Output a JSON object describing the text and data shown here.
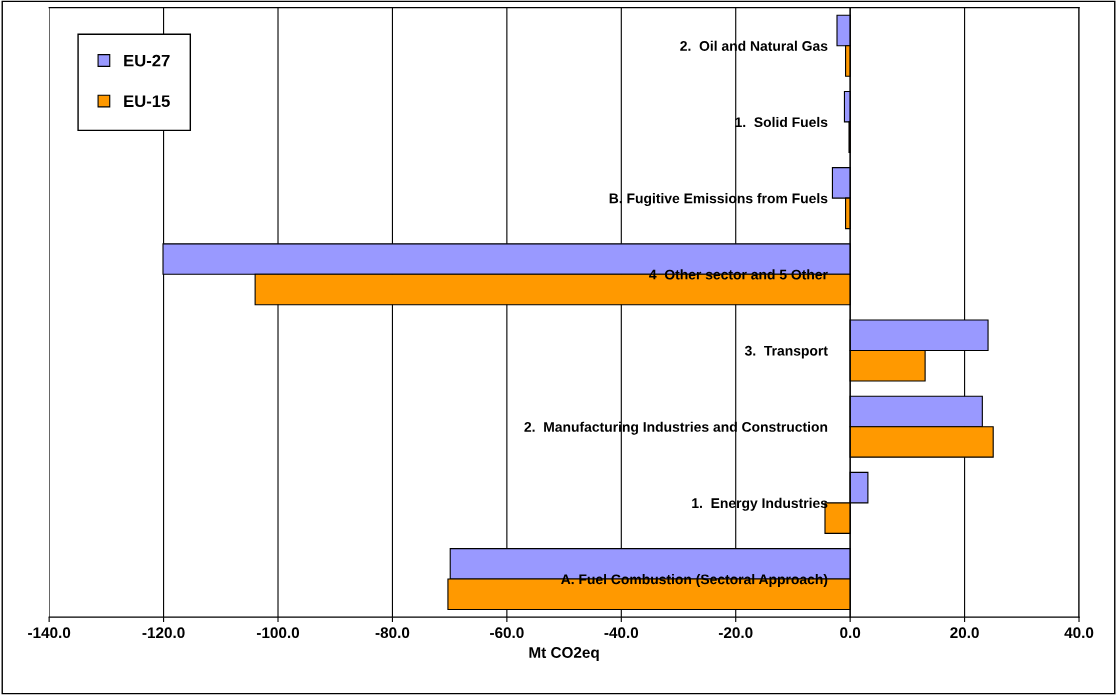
{
  "chart_data": {
    "type": "bar",
    "orientation": "horizontal",
    "xlabel": "Mt CO2eq",
    "categories": [
      "2.  Oil and Natural Gas",
      "1.  Solid Fuels",
      "B. Fugitive Emissions from Fuels",
      "4  Other sector and 5 Other",
      "3.  Transport",
      "2.  Manufacturing Industries and Construction",
      "1.  Energy Industries",
      "A. Fuel Combustion (Sectoral Approach)"
    ],
    "series": [
      {
        "name": "EU-27",
        "color": "#9999ff",
        "values": [
          -2.3,
          -1.0,
          -3.1,
          -120.1,
          24.1,
          23.1,
          3.1,
          -69.9
        ]
      },
      {
        "name": "EU-15",
        "color": "#ff9900",
        "values": [
          -0.8,
          -0.2,
          -0.8,
          -104.0,
          13.1,
          25.0,
          -4.4,
          -70.3
        ]
      }
    ],
    "xlim": [
      -140,
      40
    ],
    "xticks": [
      {
        "value": -140,
        "label": "-140.0"
      },
      {
        "value": -120,
        "label": "-120.0"
      },
      {
        "value": -100,
        "label": "-100.0"
      },
      {
        "value": -80,
        "label": "-80.0"
      },
      {
        "value": -60,
        "label": "-60.0"
      },
      {
        "value": -40,
        "label": "-40.0"
      },
      {
        "value": -20,
        "label": "-20.0"
      },
      {
        "value": 0,
        "label": "0.0"
      },
      {
        "value": 20,
        "label": "20.0"
      },
      {
        "value": 40,
        "label": "40.0"
      }
    ],
    "grid": "x",
    "legend": "top left"
  }
}
